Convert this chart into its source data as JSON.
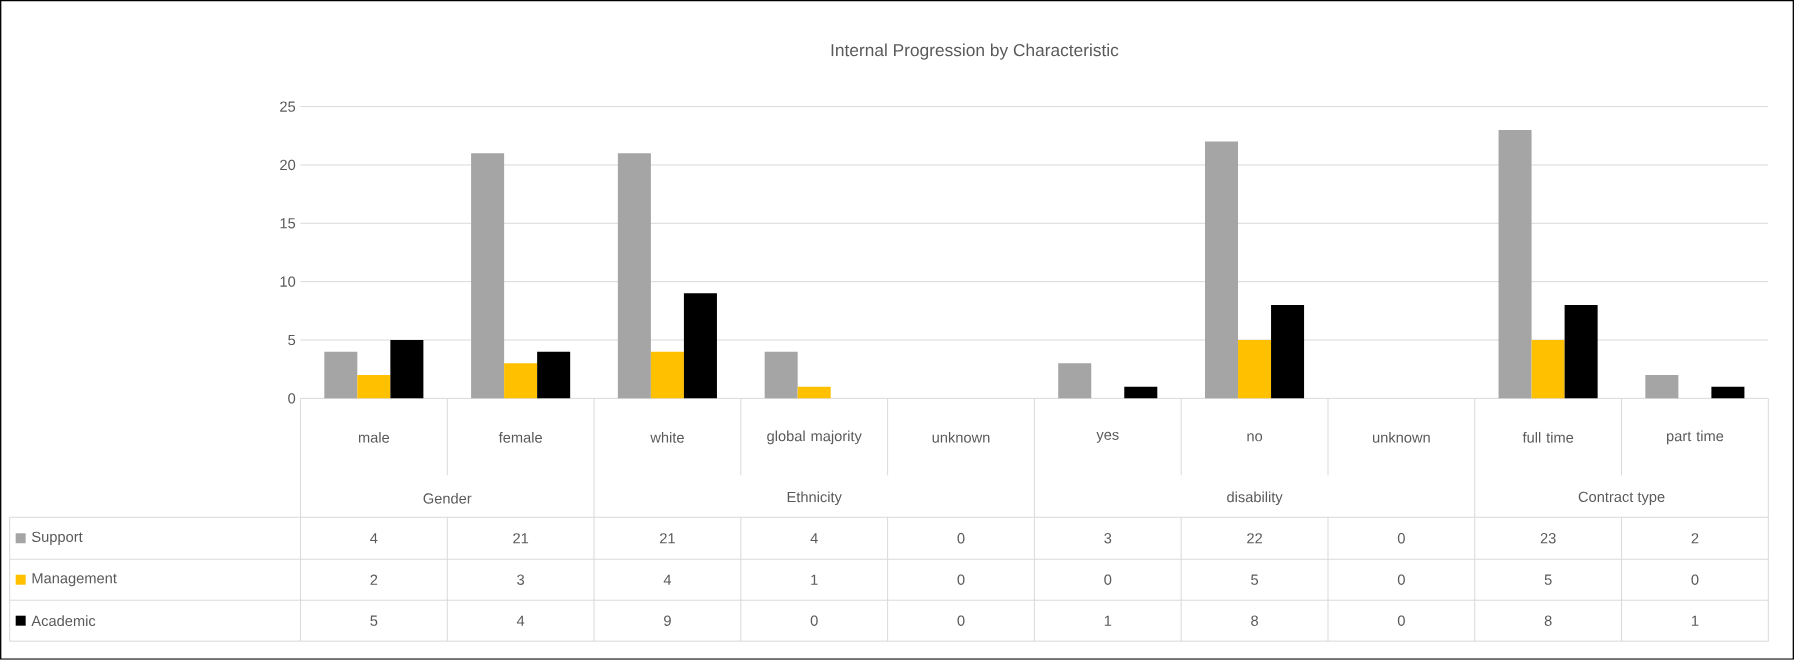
{
  "chart_data": {
    "type": "bar",
    "title": "Internal Progression  by Characteristic",
    "categories": [
      "male",
      "female",
      "white",
      "global majority",
      "unknown",
      "yes",
      "no",
      "unknown",
      "full time",
      "part time"
    ],
    "series": [
      {
        "name": "Support",
        "color": "#a5a5a5",
        "values": [
          4,
          21,
          21,
          4,
          0,
          3,
          22,
          0,
          23,
          2
        ]
      },
      {
        "name": "Management",
        "color": "#ffc000",
        "values": [
          2,
          3,
          4,
          1,
          0,
          0,
          5,
          0,
          5,
          0
        ]
      },
      {
        "name": "Academic",
        "color": "#000000",
        "values": [
          5,
          4,
          9,
          0,
          0,
          1,
          8,
          0,
          8,
          1
        ]
      }
    ],
    "annotations": [
      "Gender",
      "Ethnicity",
      "disability",
      "Contract type"
    ],
    "ylim": [
      0,
      25
    ],
    "yticks": [
      0,
      5,
      10,
      15,
      20,
      25
    ],
    "grid": "y",
    "legend": "bottom",
    "data_labels": true
  }
}
